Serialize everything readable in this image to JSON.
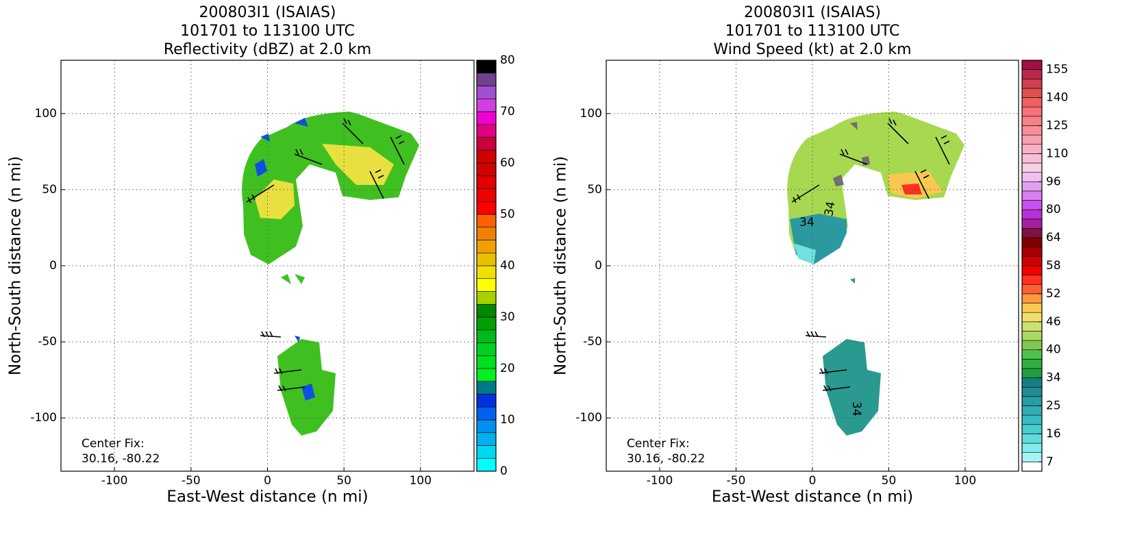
{
  "chart_data": [
    {
      "type": "radar-field",
      "title_lines": [
        "200803I1 (ISAIAS)",
        "101701 to 113100 UTC",
        "Reflectivity (dBZ) at 2.0 km"
      ],
      "xlabel": "East-West distance (n mi)",
      "ylabel": "North-South distance (n mi)",
      "xlim": [
        -135,
        135
      ],
      "ylim": [
        -135,
        135
      ],
      "xticks": [
        -100,
        -50,
        0,
        50,
        100
      ],
      "yticks": [
        -100,
        -50,
        0,
        50,
        100
      ],
      "grid": true,
      "annotations": [
        "Center Fix:",
        "30.16, -80.22"
      ],
      "colorbar": {
        "clim": [
          0,
          80
        ],
        "ticks": [
          0,
          10,
          20,
          30,
          40,
          50,
          60,
          70,
          80
        ],
        "colors": [
          "#00ffff",
          "#00d8f0",
          "#00b0f0",
          "#0090f0",
          "#0060f0",
          "#0030e0",
          "#007888",
          "#00f020",
          "#00e020",
          "#00d020",
          "#00b818",
          "#00a000",
          "#008800",
          "#a8d000",
          "#ffff00",
          "#f0e000",
          "#e8c000",
          "#f0a000",
          "#f08000",
          "#ff6000",
          "#ff0000",
          "#f00000",
          "#e00000",
          "#d00000",
          "#d00000",
          "#c8003c",
          "#e00080",
          "#f000d0",
          "#d040e0",
          "#a050d0",
          "#704090",
          "#000000"
        ]
      }
    },
    {
      "type": "radar-field",
      "title_lines": [
        "200803I1 (ISAIAS)",
        "101701 to 113100 UTC",
        "Wind Speed (kt) at 2.0 km"
      ],
      "xlabel": "East-West distance (n mi)",
      "ylabel": "North-South distance (n mi)",
      "xlim": [
        -135,
        135
      ],
      "ylim": [
        -135,
        135
      ],
      "xticks": [
        -100,
        -50,
        0,
        50,
        100
      ],
      "yticks": [
        -100,
        -50,
        0,
        50,
        100
      ],
      "grid": true,
      "annotations": [
        "Center Fix:",
        "30.16, -80.22"
      ],
      "contour_labels": [
        "34",
        "34",
        "34"
      ],
      "colorbar": {
        "ticks": [
          7,
          16,
          25,
          34,
          40,
          46,
          52,
          58,
          64,
          80,
          96,
          110,
          125,
          140,
          155
        ],
        "colors": [
          "#ffffff",
          "#a8f4f4",
          "#80ecec",
          "#60dce0",
          "#48ccd0",
          "#38bcc4",
          "#30acb4",
          "#289ca4",
          "#208c94",
          "#187c84",
          "#20a040",
          "#30b040",
          "#50c050",
          "#80c850",
          "#a8d860",
          "#d0e070",
          "#f0e070",
          "#f8c850",
          "#ff9840",
          "#ff6030",
          "#ff3020",
          "#f00000",
          "#d00000",
          "#a80000",
          "#800000",
          "#801040",
          "#a020a0",
          "#b830d8",
          "#c850f0",
          "#d880f0",
          "#e0a0f0",
          "#f0c0f0",
          "#f8d0e8",
          "#f8c0d8",
          "#f8b0c8",
          "#f8a0b0",
          "#f89098",
          "#f88088",
          "#f87078",
          "#f06060",
          "#e05050",
          "#d04050",
          "#b82848",
          "#a01040"
        ]
      }
    }
  ]
}
